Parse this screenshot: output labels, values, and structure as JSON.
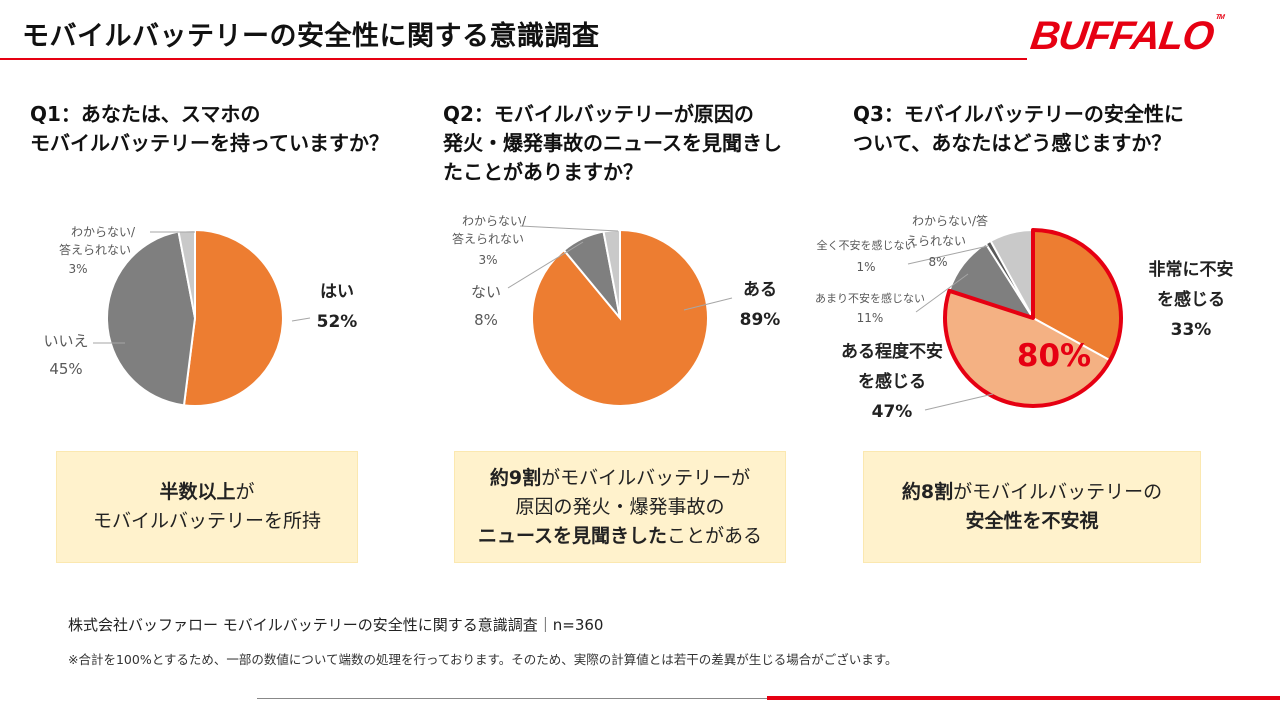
{
  "header": {
    "title": "モバイルバッテリーの安全性に関する意識調査",
    "logo_text": "BUFFALO",
    "logo_mark": "TM",
    "accent_color": "#e60012"
  },
  "questions": [
    {
      "text": "Q1：あなたは、スマホの\nモバイルバッテリーを持っていますか？"
    },
    {
      "text": "Q2：モバイルバッテリーが原因の\n発火・爆発事故のニュースを見聞きし\nたことがありますか？"
    },
    {
      "text": "Q3：モバイルバッテリーの安全性に\nついて、あなたはどう感じますか？"
    }
  ],
  "chart_data": [
    {
      "type": "pie",
      "title": "Q1：あなたは、スマホのモバイルバッテリーを持っていますか？",
      "slices": [
        {
          "label": "はい",
          "value": 52,
          "value_text": "52%",
          "color": "#ed7d31"
        },
        {
          "label": "いいえ",
          "value": 45,
          "value_text": "45%",
          "color": "#7f7f7f"
        },
        {
          "label": "わからない/答えられない",
          "value": 3,
          "value_text": "3%",
          "color": "#c9c9c9"
        }
      ]
    },
    {
      "type": "pie",
      "title": "Q2：モバイルバッテリーが原因の発火・爆発事故のニュースを見聞きしたことがありますか？",
      "slices": [
        {
          "label": "ある",
          "value": 89,
          "value_text": "89%",
          "color": "#ed7d31"
        },
        {
          "label": "ない",
          "value": 8,
          "value_text": "8%",
          "color": "#7f7f7f"
        },
        {
          "label": "わからない/答えられない",
          "value": 3,
          "value_text": "3%",
          "color": "#c9c9c9"
        }
      ]
    },
    {
      "type": "pie",
      "title": "Q3：モバイルバッテリーの安全性について、あなたはどう感じますか？",
      "slices": [
        {
          "label": "非常に不安を感じる",
          "value": 33,
          "value_text": "33%",
          "color": "#ed7d31"
        },
        {
          "label": "ある程度不安を感じる",
          "value": 47,
          "value_text": "47%",
          "color": "#f4b183"
        },
        {
          "label": "あまり不安を感じない",
          "value": 11,
          "value_text": "11%",
          "color": "#7f7f7f"
        },
        {
          "label": "全く不安を感じない",
          "value": 1,
          "value_text": "1%",
          "color": "#595959"
        },
        {
          "label": "わからない/答えられない",
          "value": 8,
          "value_text": "8%",
          "color": "#c9c9c9"
        }
      ],
      "highlight": {
        "text": "80%",
        "color": "#e60012"
      }
    }
  ],
  "callouts": [
    {
      "bold1": "半数以上",
      "text1": "が",
      "line2": "モバイルバッテリーを所持"
    },
    {
      "bold1": "約9割",
      "text1": "がモバイルバッテリーが",
      "line2": "原因の発火・爆発事故の",
      "bold3": "ニュースを見聞きした",
      "text3": "ことがある"
    },
    {
      "bold1": "約8割",
      "text1": "がモバイルバッテリーの",
      "bold2": "安全性を不安視"
    }
  ],
  "footer": {
    "source": "株式会社バッファロー モバイルバッテリーの安全性に関する意識調査｜n=360",
    "note": "※合計を100%とするため、一部の数値について端数の処理を行っております。そのため、実際の計算値とは若干の差異が生じる場合がございます。"
  }
}
